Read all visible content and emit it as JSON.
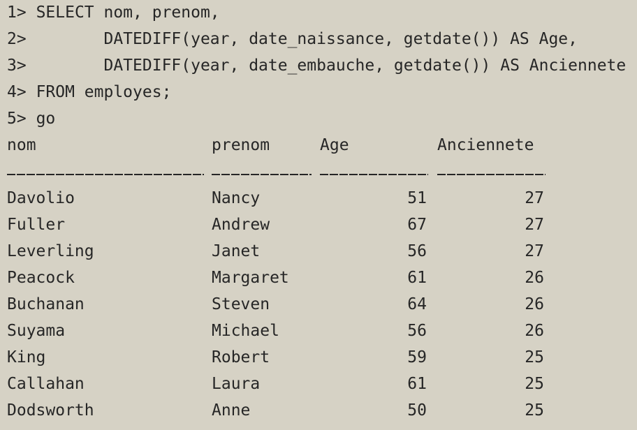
{
  "query_lines": [
    {
      "prompt": "1>",
      "code": "SELECT nom, prenom,"
    },
    {
      "prompt": "2>",
      "code": "       DATEDIFF(year, date_naissance, getdate()) AS Age,"
    },
    {
      "prompt": "3>",
      "code": "       DATEDIFF(year, date_embauche, getdate()) AS Anciennete"
    },
    {
      "prompt": "4>",
      "code": "FROM employes;"
    },
    {
      "prompt": "5>",
      "code": "go"
    }
  ],
  "result": {
    "columns": [
      "nom",
      "prenom",
      "Age",
      "Anciennete"
    ],
    "rows": [
      {
        "nom": "Davolio",
        "prenom": "Nancy",
        "age": "51",
        "anciennete": "27"
      },
      {
        "nom": "Fuller",
        "prenom": "Andrew",
        "age": "67",
        "anciennete": "27"
      },
      {
        "nom": "Leverling",
        "prenom": "Janet",
        "age": "56",
        "anciennete": "27"
      },
      {
        "nom": "Peacock",
        "prenom": "Margaret",
        "age": "61",
        "anciennete": "26"
      },
      {
        "nom": "Buchanan",
        "prenom": "Steven",
        "age": "64",
        "anciennete": "26"
      },
      {
        "nom": "Suyama",
        "prenom": "Michael",
        "age": "56",
        "anciennete": "26"
      },
      {
        "nom": "King",
        "prenom": "Robert",
        "age": "59",
        "anciennete": "25"
      },
      {
        "nom": "Callahan",
        "prenom": "Laura",
        "age": "61",
        "anciennete": "25"
      },
      {
        "nom": "Dodsworth",
        "prenom": "Anne",
        "age": "50",
        "anciennete": "25"
      }
    ]
  },
  "colors": {
    "background": "#d6d2c5",
    "text": "#262626"
  }
}
